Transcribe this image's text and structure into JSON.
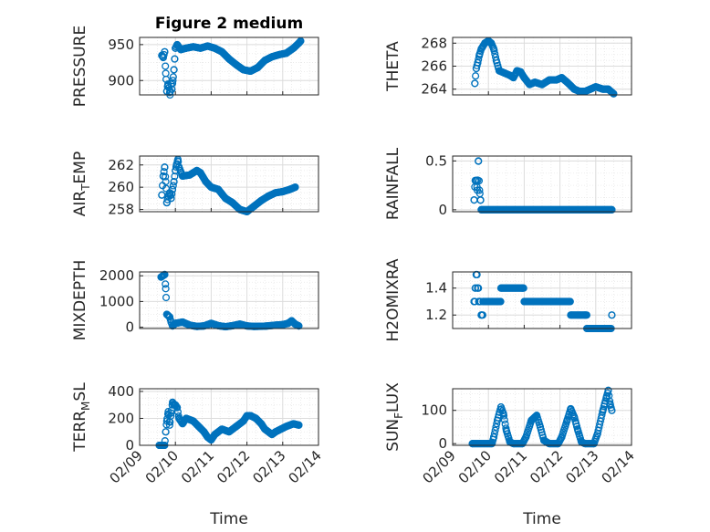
{
  "figure": {
    "title": "Figure 2 medium",
    "marker_color": "#0072bd",
    "x_ticks": [
      "02/09",
      "02/10",
      "02/11",
      "02/12",
      "02/13",
      "02/14"
    ],
    "x_label": "Time"
  },
  "chart_data": [
    {
      "type": "scatter",
      "id": "pressure",
      "ylabel": "PRESSURE",
      "ylim": [
        880,
        960
      ],
      "yticks": [
        900,
        950
      ],
      "show_x_ticks": false,
      "keypoints": [
        [
          9.62,
          935
        ],
        [
          9.66,
          932
        ],
        [
          9.7,
          940
        ],
        [
          9.73,
          910
        ],
        [
          9.76,
          885
        ],
        [
          9.79,
          895
        ],
        [
          9.82,
          890
        ],
        [
          9.85,
          880
        ],
        [
          9.88,
          895
        ],
        [
          9.9,
          888
        ],
        [
          9.93,
          900
        ],
        [
          9.96,
          915
        ],
        [
          9.98,
          930
        ],
        [
          10.0,
          945
        ],
        [
          10.05,
          950
        ],
        [
          10.15,
          943
        ],
        [
          10.3,
          945
        ],
        [
          10.5,
          947
        ],
        [
          10.7,
          945
        ],
        [
          10.9,
          948
        ],
        [
          11.1,
          945
        ],
        [
          11.3,
          940
        ],
        [
          11.5,
          930
        ],
        [
          11.7,
          922
        ],
        [
          11.9,
          915
        ],
        [
          12.1,
          913
        ],
        [
          12.3,
          918
        ],
        [
          12.5,
          928
        ],
        [
          12.7,
          933
        ],
        [
          12.9,
          936
        ],
        [
          13.1,
          938
        ],
        [
          13.3,
          945
        ],
        [
          13.45,
          952
        ],
        [
          13.5,
          955
        ]
      ]
    },
    {
      "type": "scatter",
      "id": "theta",
      "ylabel": "THETA",
      "ylim": [
        263.5,
        268.5
      ],
      "yticks": [
        264,
        266,
        268
      ],
      "show_x_ticks": false,
      "keypoints": [
        [
          9.62,
          264.5
        ],
        [
          9.66,
          265.8
        ],
        [
          9.7,
          266.3
        ],
        [
          9.75,
          267.0
        ],
        [
          9.8,
          267.5
        ],
        [
          9.9,
          268.0
        ],
        [
          10.0,
          268.2
        ],
        [
          10.08,
          268.0
        ],
        [
          10.15,
          267.5
        ],
        [
          10.22,
          266.5
        ],
        [
          10.3,
          265.6
        ],
        [
          10.45,
          265.4
        ],
        [
          10.6,
          265.2
        ],
        [
          10.7,
          265.0
        ],
        [
          10.8,
          265.6
        ],
        [
          10.9,
          265.5
        ],
        [
          11.0,
          265.0
        ],
        [
          11.15,
          264.4
        ],
        [
          11.3,
          264.6
        ],
        [
          11.5,
          264.4
        ],
        [
          11.7,
          264.8
        ],
        [
          11.9,
          264.8
        ],
        [
          12.05,
          265.0
        ],
        [
          12.2,
          264.6
        ],
        [
          12.4,
          264.0
        ],
        [
          12.55,
          263.8
        ],
        [
          12.7,
          263.8
        ],
        [
          12.85,
          264.0
        ],
        [
          13.0,
          264.2
        ],
        [
          13.2,
          264.0
        ],
        [
          13.35,
          264.0
        ],
        [
          13.5,
          263.6
        ]
      ]
    },
    {
      "type": "scatter",
      "id": "air_temp",
      "ylabel": "AIR_TEMP",
      "ylabel_parts": [
        "AIR",
        "T",
        "EMP"
      ],
      "ylim": [
        257.8,
        262.8
      ],
      "yticks": [
        258,
        260,
        262
      ],
      "show_x_ticks": false,
      "keypoints": [
        [
          9.62,
          259.3
        ],
        [
          9.66,
          261.0
        ],
        [
          9.7,
          261.8
        ],
        [
          9.73,
          260.5
        ],
        [
          9.76,
          258.6
        ],
        [
          9.8,
          259.2
        ],
        [
          9.84,
          259.5
        ],
        [
          9.88,
          259.0
        ],
        [
          9.92,
          259.8
        ],
        [
          9.96,
          260.5
        ],
        [
          10.0,
          261.5
        ],
        [
          10.03,
          262.0
        ],
        [
          10.07,
          262.5
        ],
        [
          10.1,
          261.8
        ],
        [
          10.2,
          261.0
        ],
        [
          10.4,
          261.1
        ],
        [
          10.6,
          261.5
        ],
        [
          10.7,
          261.3
        ],
        [
          10.85,
          260.5
        ],
        [
          11.0,
          260.0
        ],
        [
          11.2,
          259.8
        ],
        [
          11.4,
          259.0
        ],
        [
          11.6,
          258.6
        ],
        [
          11.8,
          258.0
        ],
        [
          12.0,
          257.8
        ],
        [
          12.2,
          258.3
        ],
        [
          12.4,
          258.8
        ],
        [
          12.6,
          259.2
        ],
        [
          12.8,
          259.5
        ],
        [
          13.0,
          259.6
        ],
        [
          13.2,
          259.8
        ],
        [
          13.35,
          260.0
        ]
      ]
    },
    {
      "type": "scatter",
      "id": "rainfall",
      "ylabel": "RAINFALL",
      "ylim": [
        -0.02,
        0.55
      ],
      "yticks": [
        0,
        0.5
      ],
      "show_x_ticks": false,
      "keypoints": [
        [
          9.6,
          0.1
        ],
        [
          9.63,
          0.3
        ],
        [
          9.66,
          0.3
        ],
        [
          9.69,
          0.2
        ],
        [
          9.72,
          0.5
        ],
        [
          9.75,
          0.2
        ],
        [
          9.78,
          0.1
        ],
        [
          9.8,
          0.0
        ],
        [
          13.45,
          0.0
        ]
      ]
    },
    {
      "type": "scatter",
      "id": "mixdepth",
      "ylabel": "MIXDEPTH",
      "ylim": [
        -50,
        2150
      ],
      "yticks": [
        0,
        1000,
        2000
      ],
      "show_x_ticks": false,
      "keypoints": [
        [
          9.6,
          1950
        ],
        [
          9.65,
          2000
        ],
        [
          9.7,
          2050
        ],
        [
          9.73,
          1500
        ],
        [
          9.76,
          500
        ],
        [
          9.8,
          450
        ],
        [
          9.84,
          400
        ],
        [
          9.88,
          200
        ],
        [
          9.92,
          50
        ],
        [
          10.0,
          150
        ],
        [
          10.2,
          200
        ],
        [
          10.4,
          80
        ],
        [
          10.6,
          30
        ],
        [
          10.8,
          50
        ],
        [
          11.0,
          150
        ],
        [
          11.2,
          60
        ],
        [
          11.4,
          20
        ],
        [
          11.6,
          60
        ],
        [
          11.8,
          120
        ],
        [
          12.0,
          50
        ],
        [
          12.2,
          30
        ],
        [
          12.5,
          40
        ],
        [
          12.8,
          80
        ],
        [
          13.0,
          100
        ],
        [
          13.15,
          150
        ],
        [
          13.25,
          250
        ],
        [
          13.35,
          120
        ],
        [
          13.45,
          50
        ]
      ]
    },
    {
      "type": "step",
      "id": "h2omixra",
      "ylabel": "H2OMIXRA",
      "ylim": [
        1.1,
        1.52
      ],
      "yticks": [
        1.2,
        1.4
      ],
      "show_x_ticks": false,
      "keypoints": [
        [
          9.6,
          1.3
        ],
        [
          9.63,
          1.4
        ],
        [
          9.66,
          1.5
        ],
        [
          9.7,
          1.4
        ],
        [
          9.73,
          1.3
        ],
        [
          9.8,
          1.2
        ],
        [
          9.85,
          1.3
        ],
        [
          10.0,
          1.3
        ],
        [
          10.1,
          1.3
        ],
        [
          10.35,
          1.4
        ],
        [
          10.95,
          1.4
        ],
        [
          11.0,
          1.3
        ],
        [
          11.9,
          1.3
        ],
        [
          12.3,
          1.2
        ],
        [
          12.7,
          1.2
        ],
        [
          12.75,
          1.1
        ],
        [
          13.3,
          1.1
        ],
        [
          13.45,
          1.2
        ]
      ]
    },
    {
      "type": "scatter",
      "id": "terr_msl",
      "ylabel": "TERR_MSL",
      "ylabel_parts": [
        "TERR",
        "M",
        "SL"
      ],
      "ylim": [
        0,
        420
      ],
      "yticks": [
        0,
        200,
        400
      ],
      "show_x_ticks": true,
      "keypoints": [
        [
          9.55,
          0
        ],
        [
          9.7,
          0
        ],
        [
          9.73,
          100
        ],
        [
          9.76,
          180
        ],
        [
          9.8,
          250
        ],
        [
          9.84,
          150
        ],
        [
          9.88,
          240
        ],
        [
          9.92,
          320
        ],
        [
          9.96,
          300
        ],
        [
          10.0,
          300
        ],
        [
          10.05,
          280
        ],
        [
          10.1,
          200
        ],
        [
          10.2,
          160
        ],
        [
          10.3,
          200
        ],
        [
          10.5,
          180
        ],
        [
          10.65,
          140
        ],
        [
          10.8,
          100
        ],
        [
          10.9,
          60
        ],
        [
          11.0,
          40
        ],
        [
          11.1,
          80
        ],
        [
          11.3,
          120
        ],
        [
          11.5,
          100
        ],
        [
          11.7,
          140
        ],
        [
          11.9,
          180
        ],
        [
          12.0,
          220
        ],
        [
          12.1,
          220
        ],
        [
          12.25,
          200
        ],
        [
          12.4,
          160
        ],
        [
          12.5,
          120
        ],
        [
          12.7,
          80
        ],
        [
          12.8,
          100
        ],
        [
          12.95,
          120
        ],
        [
          13.1,
          140
        ],
        [
          13.3,
          160
        ],
        [
          13.45,
          150
        ]
      ]
    },
    {
      "type": "scatter",
      "id": "sun_flux",
      "ylabel": "SUN_FLUX",
      "ylabel_parts": [
        "SUN",
        "F",
        "LUX"
      ],
      "ylim": [
        -5,
        165
      ],
      "yticks": [
        0,
        100
      ],
      "show_x_ticks": true,
      "keypoints": [
        [
          9.55,
          0
        ],
        [
          10.1,
          0
        ],
        [
          10.15,
          20
        ],
        [
          10.25,
          70
        ],
        [
          10.35,
          110
        ],
        [
          10.42,
          90
        ],
        [
          10.5,
          40
        ],
        [
          10.6,
          5
        ],
        [
          10.7,
          0
        ],
        [
          10.95,
          0
        ],
        [
          11.05,
          20
        ],
        [
          11.2,
          70
        ],
        [
          11.35,
          85
        ],
        [
          11.45,
          50
        ],
        [
          11.55,
          10
        ],
        [
          11.7,
          0
        ],
        [
          11.95,
          0
        ],
        [
          12.05,
          20
        ],
        [
          12.2,
          70
        ],
        [
          12.3,
          105
        ],
        [
          12.4,
          80
        ],
        [
          12.5,
          40
        ],
        [
          12.6,
          5
        ],
        [
          12.7,
          0
        ],
        [
          12.95,
          0
        ],
        [
          13.05,
          30
        ],
        [
          13.2,
          100
        ],
        [
          13.3,
          140
        ],
        [
          13.35,
          160
        ],
        [
          13.4,
          120
        ],
        [
          13.45,
          100
        ]
      ]
    }
  ]
}
